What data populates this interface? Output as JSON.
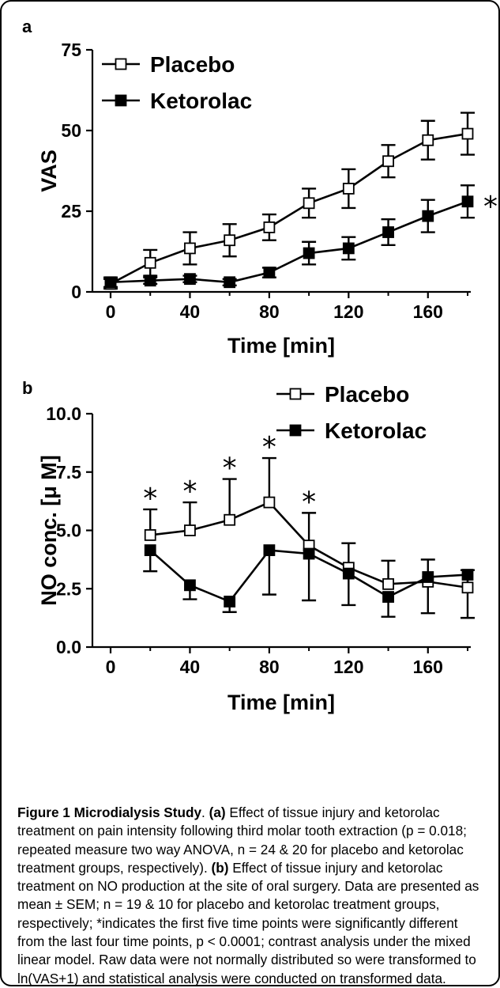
{
  "caption": {
    "title": "Figure 1 Microdialysis Study",
    "title_punct": ". ",
    "a_label": "(a)",
    "a_text": " Effect of tissue injury and ketorolac treatment on pain intensity following third molar tooth extraction (p = 0.018; repeated measure two way ANOVA, n = 24 & 20 for placebo and ketorolac treatment groups, respectively). ",
    "b_label": "(b)",
    "b_text": " Effect of tissue injury and ketorolac treatment on NO production at the site of oral surgery. Data are presented as mean ± SEM; n = 19 & 10 for placebo and ketorolac treatment groups, respectively; *indicates the first five time points were significantly different from the last four time points, p < 0.0001; contrast analysis under the mixed linear model. Raw data were not normally distributed so were transformed to ln(VAS+1) and statistical analysis were conducted on transformed data."
  },
  "colors": {
    "ink": "#000000",
    "open_marker_fill": "#ffffff"
  },
  "chart_data": [
    {
      "panel": "a",
      "type": "line",
      "xlabel": "Time [min]",
      "ylabel": "VAS",
      "xlim": [
        0,
        180
      ],
      "ylim": [
        0,
        75
      ],
      "xticks": [
        0,
        40,
        80,
        120,
        160
      ],
      "yticks": [
        0,
        25,
        50,
        75
      ],
      "x": [
        0,
        20,
        40,
        60,
        80,
        100,
        120,
        140,
        160,
        180
      ],
      "legend_position": "top-left",
      "grid": false,
      "series": [
        {
          "name": "Placebo",
          "marker": "open-square",
          "values": [
            2.5,
            9,
            13.5,
            16,
            20,
            27.5,
            32,
            40.5,
            47,
            49
          ],
          "errors": [
            1.5,
            4,
            5,
            5,
            4,
            4.5,
            6,
            5,
            6,
            6.5
          ]
        },
        {
          "name": "Ketorolac",
          "marker": "filled-square",
          "values": [
            3,
            3.5,
            4,
            3,
            6,
            12,
            13.5,
            18.5,
            23.5,
            28
          ],
          "errors": [
            1.5,
            1,
            1,
            1,
            1.5,
            3.5,
            3.5,
            4,
            5,
            5
          ]
        }
      ],
      "annotations": [
        {
          "text": "*",
          "x": 180,
          "y": 28
        }
      ]
    },
    {
      "panel": "b",
      "type": "line",
      "xlabel": "Time [min]",
      "ylabel": "NO conc. [μ M]",
      "xlim": [
        0,
        180
      ],
      "ylim": [
        0,
        10
      ],
      "xticks": [
        0,
        40,
        80,
        120,
        160
      ],
      "yticks": [
        0.0,
        2.5,
        5.0,
        7.5,
        10.0
      ],
      "ytick_labels": [
        "0.0",
        "2.5",
        "5.0",
        "7.5",
        "10.0"
      ],
      "x": [
        20,
        40,
        60,
        80,
        100,
        120,
        140,
        160,
        180
      ],
      "legend_position": "top-right",
      "grid": false,
      "series": [
        {
          "name": "Placebo",
          "marker": "open-square",
          "values": [
            4.8,
            5.0,
            5.45,
            6.2,
            4.35,
            3.4,
            2.7,
            2.8,
            2.55
          ],
          "errors": [
            1.1,
            1.2,
            1.75,
            1.9,
            1.4,
            1.05,
            1.0,
            0.95,
            0.75
          ],
          "error_direction": "up"
        },
        {
          "name": "Ketorolac",
          "marker": "filled-square",
          "values": [
            4.15,
            2.65,
            1.95,
            4.15,
            4.0,
            3.15,
            2.15,
            3.0,
            3.1
          ],
          "errors": [
            0.9,
            0.6,
            0.45,
            1.9,
            2.0,
            1.35,
            0.85,
            1.55,
            1.85
          ],
          "error_direction": "down"
        }
      ],
      "annotations": [
        {
          "text": "*",
          "x": 20,
          "y": 5.9
        },
        {
          "text": "*",
          "x": 40,
          "y": 6.2
        },
        {
          "text": "*",
          "x": 60,
          "y": 7.2
        },
        {
          "text": "*",
          "x": 80,
          "y": 8.1
        },
        {
          "text": "*",
          "x": 100,
          "y": 5.75
        }
      ]
    }
  ]
}
